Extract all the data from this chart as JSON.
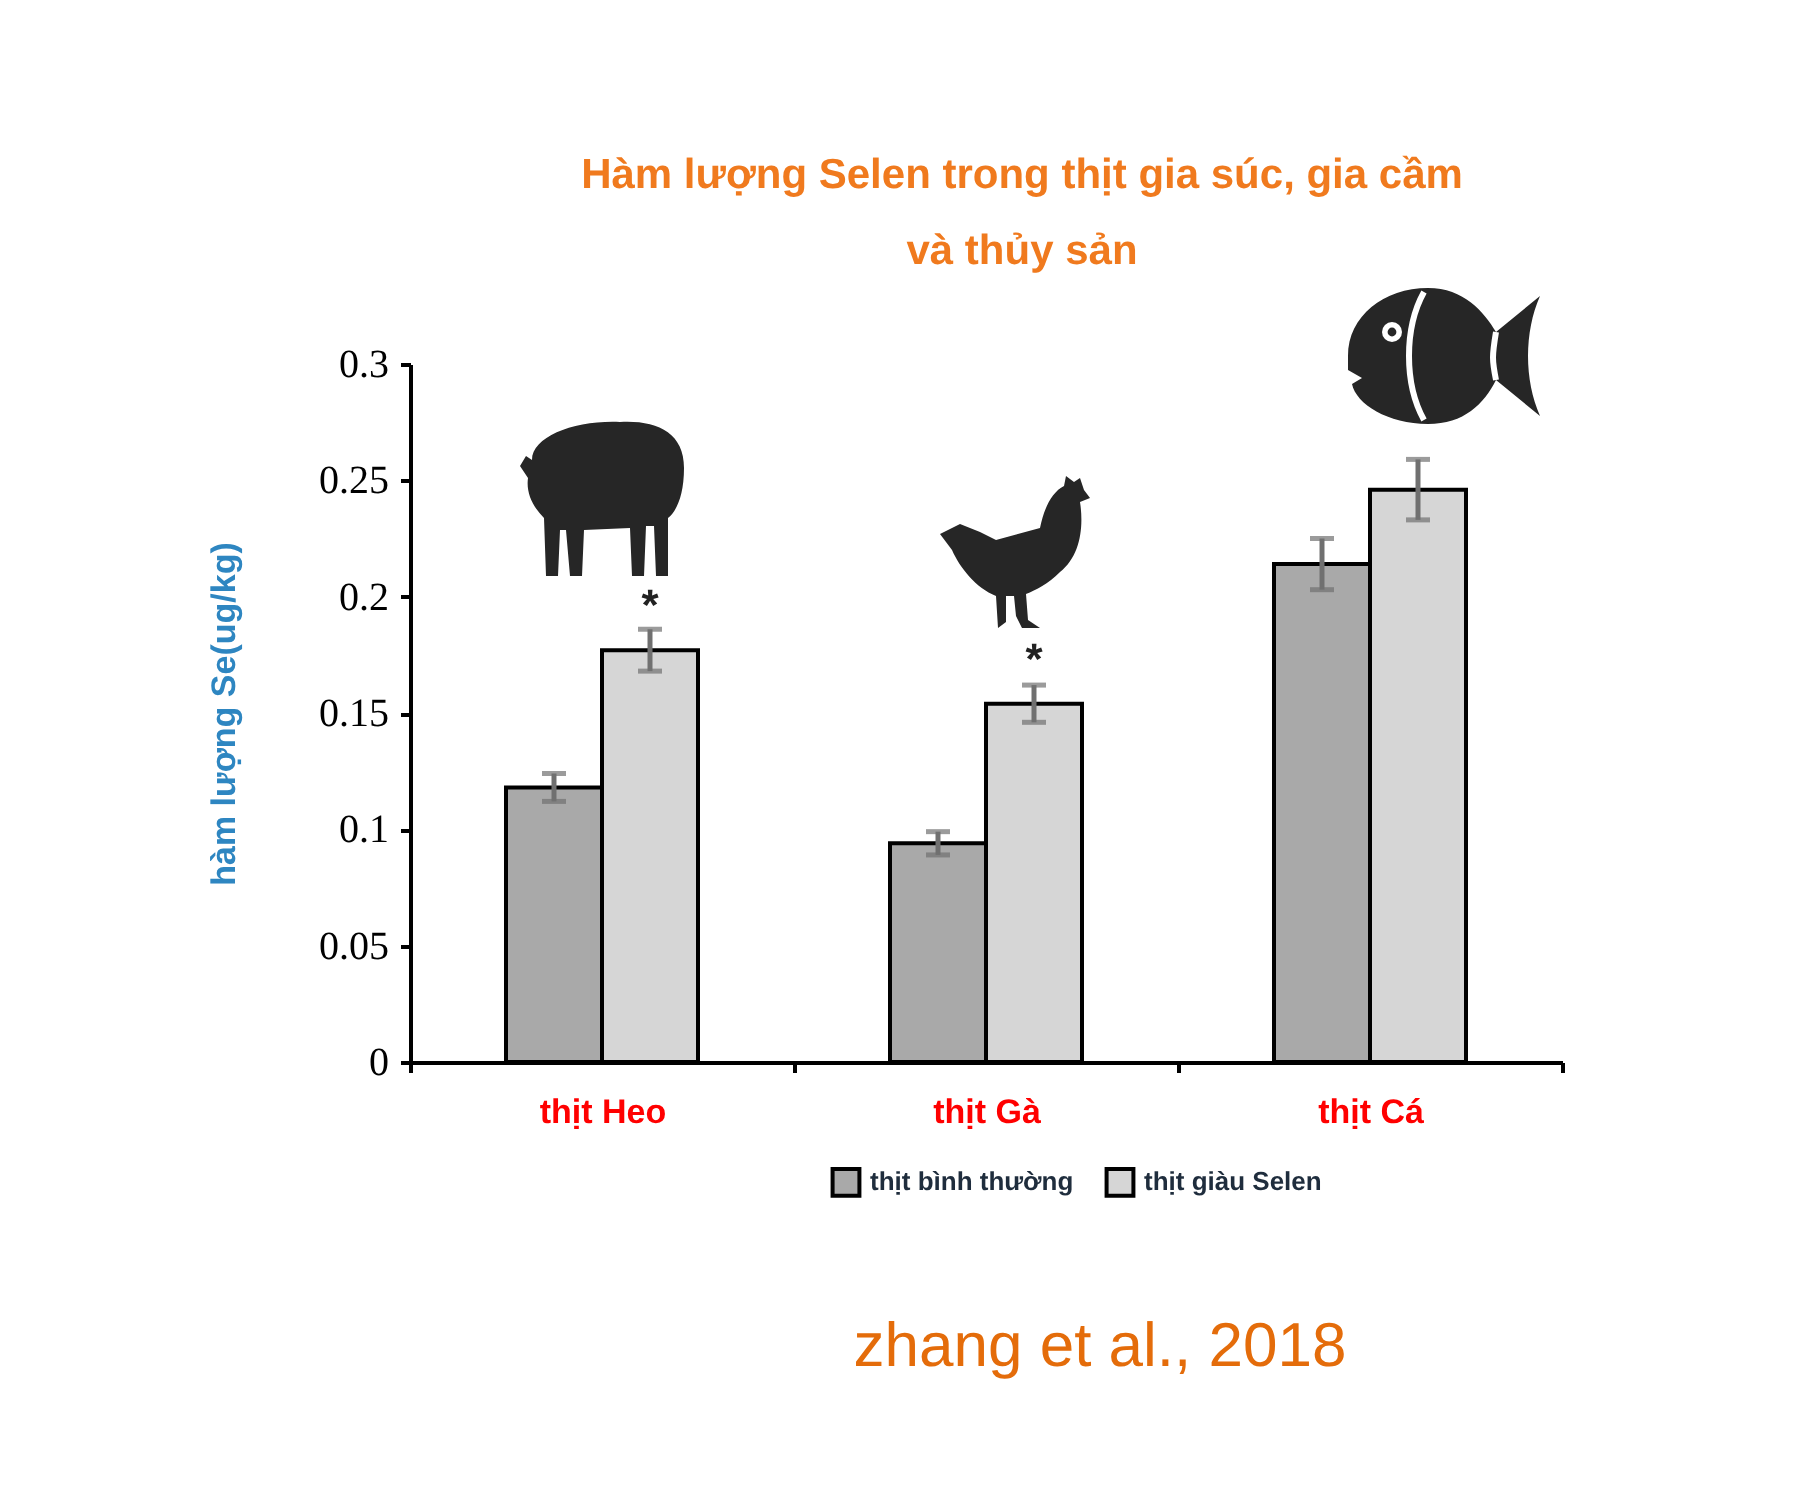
{
  "chart_data": {
    "type": "bar",
    "title": "Hàm lượng Selen trong thịt gia súc, gia cầm và thủy sản",
    "ylabel": "hàm lượng Se(ug/kg)",
    "categories": [
      "thịt Heo",
      "thịt Gà",
      "thịt Cá"
    ],
    "series": [
      {
        "name": "thịt bình thường",
        "color": "#a9a9a9",
        "values": [
          0.118,
          0.094,
          0.214
        ],
        "errors": [
          0.006,
          0.005,
          0.011
        ]
      },
      {
        "name": "thịt giàu Selen",
        "color": "#d6d6d6",
        "values": [
          0.177,
          0.154,
          0.246
        ],
        "errors": [
          0.009,
          0.008,
          0.013
        ]
      }
    ],
    "ylim": [
      0,
      0.3
    ],
    "yticks": [
      0,
      0.05,
      0.1,
      0.15,
      0.2,
      0.25,
      0.3
    ],
    "grid": false,
    "legend": "bottom",
    "annotations": [
      {
        "text": "*",
        "x": "thịt Heo",
        "y": 0.177
      },
      {
        "text": "*",
        "x": "thịt Gà",
        "y": 0.154
      },
      "zhang et al., 2018"
    ]
  }
}
